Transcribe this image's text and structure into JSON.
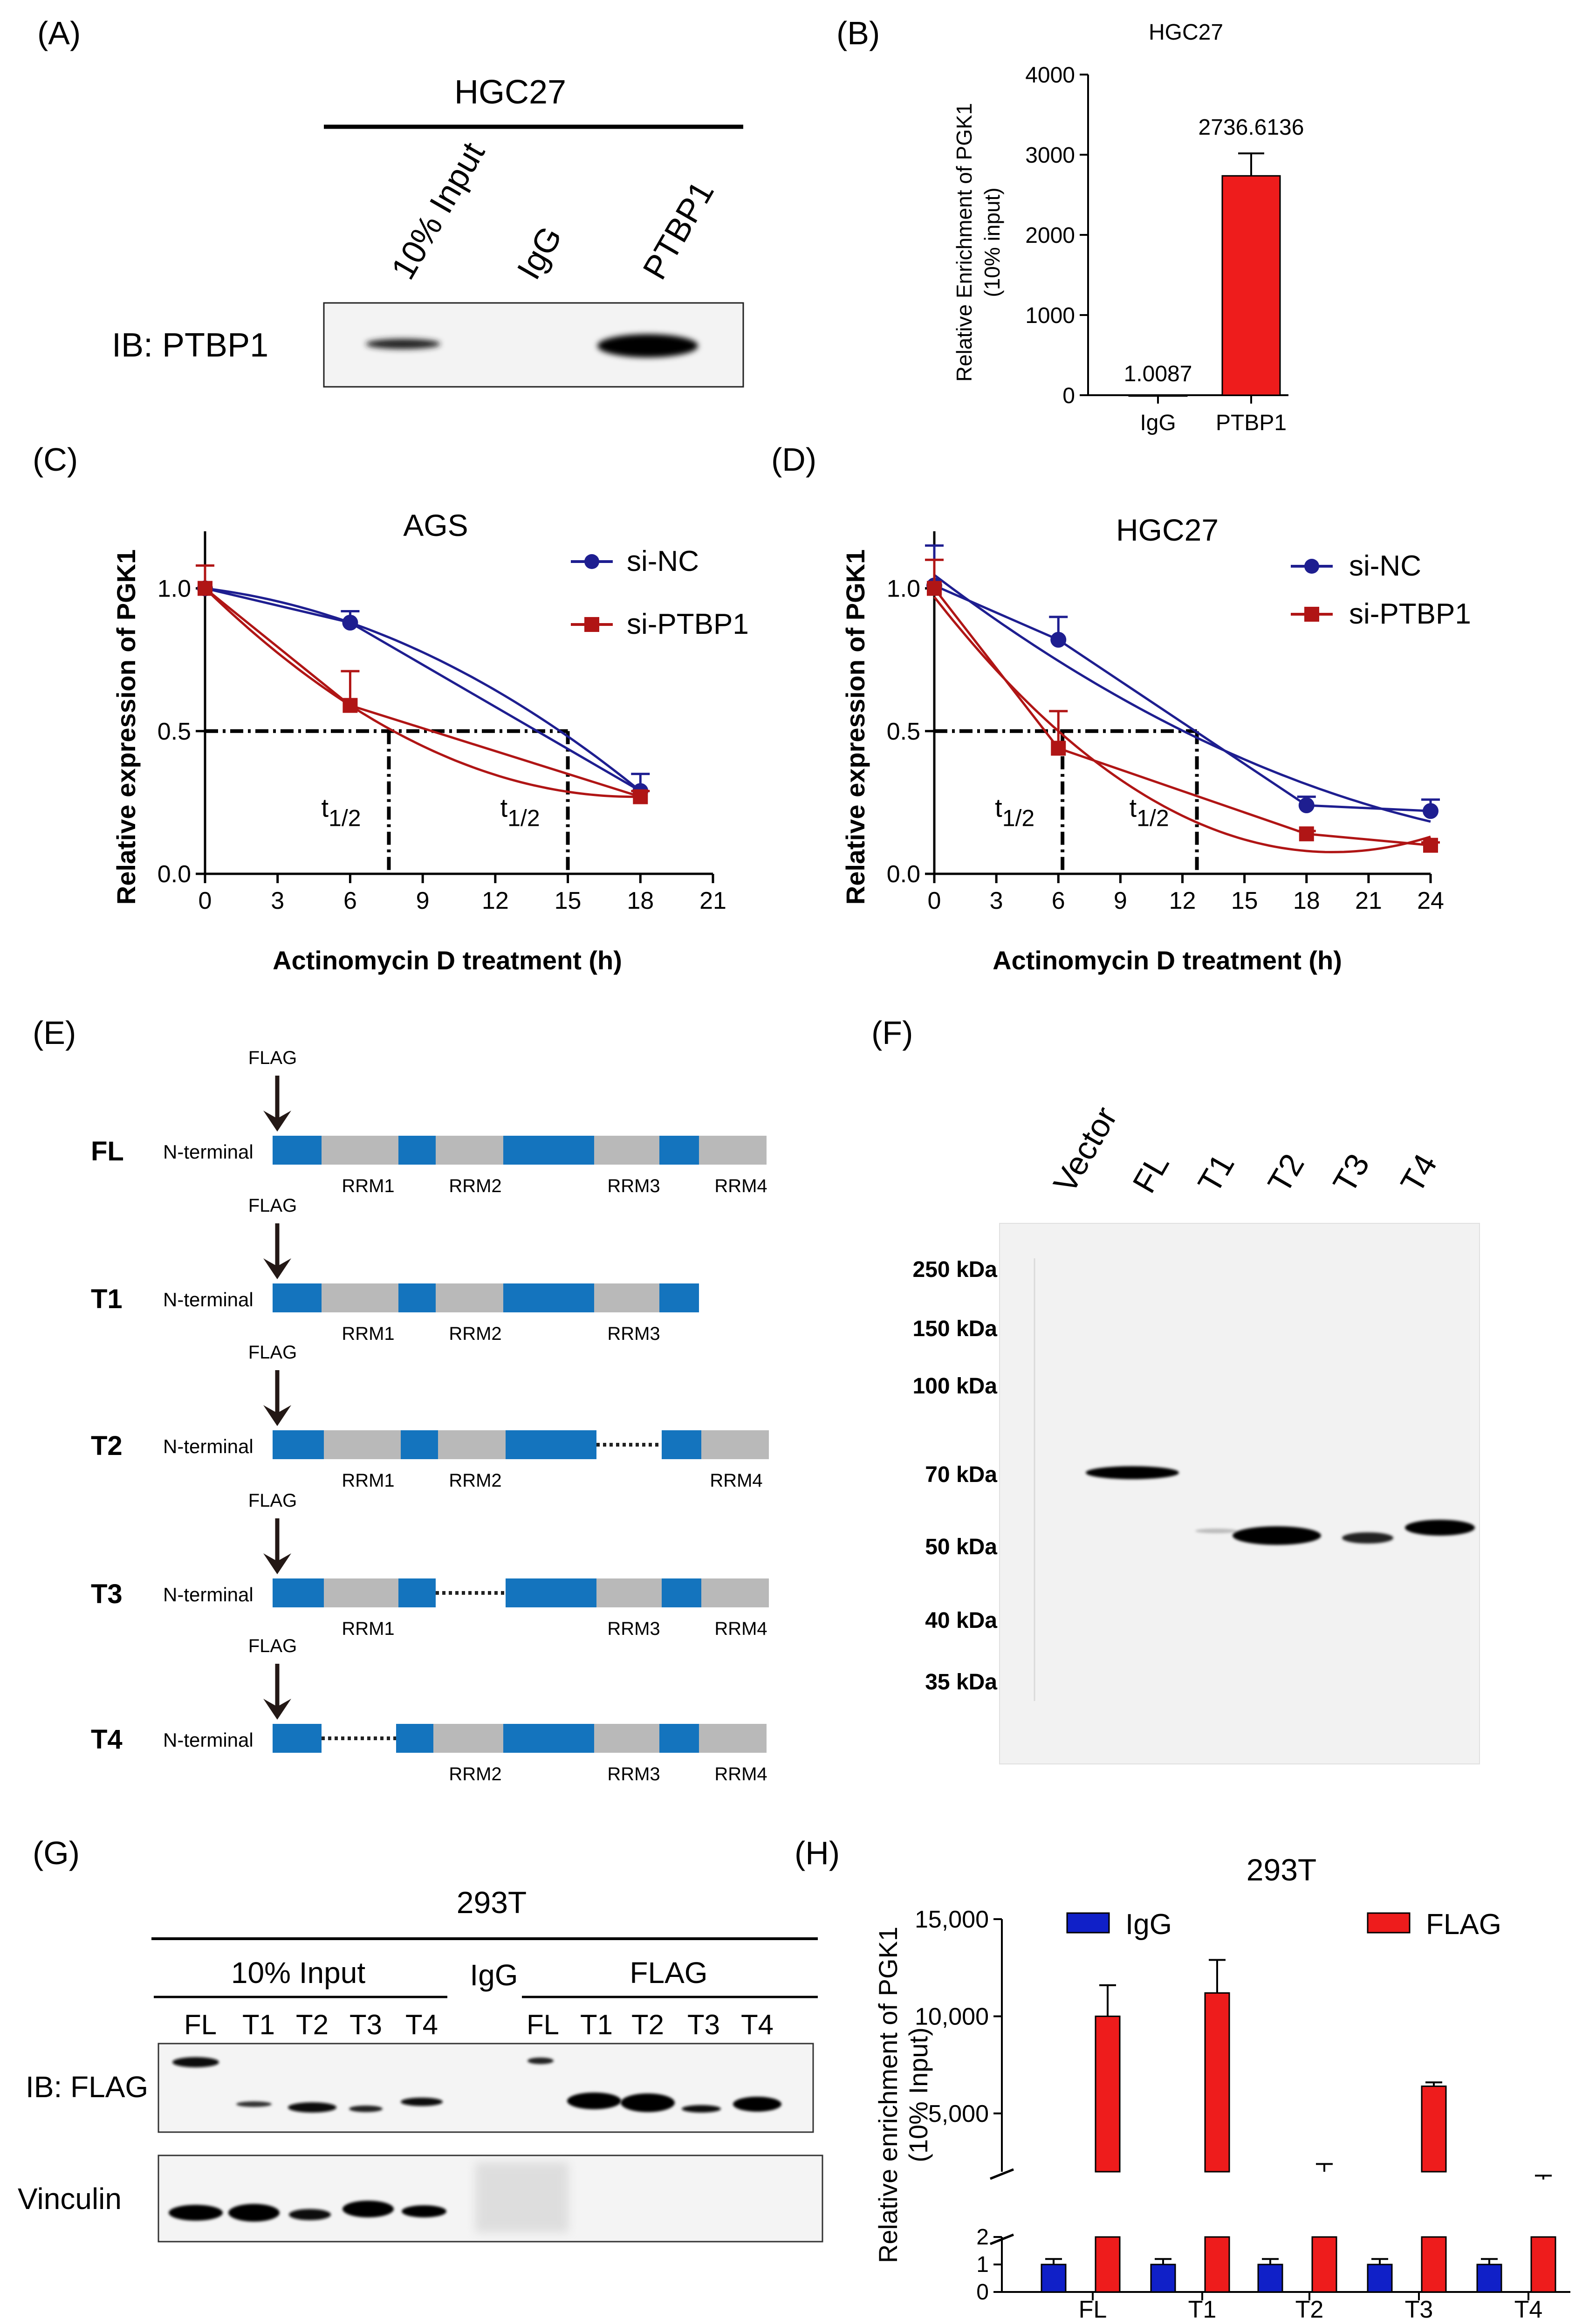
{
  "figure": {
    "panels": {
      "A": "(A)",
      "B": "(B)",
      "C": "(C)",
      "D": "(D)",
      "E": "(E)",
      "F": "(F)",
      "G": "(G)",
      "H": "(H)"
    }
  },
  "panel_a": {
    "cell_line": "HGC27",
    "lanes": [
      "10% Input",
      "IgG",
      "PTBP1"
    ],
    "blot_label": "IB: PTBP1"
  },
  "colors": {
    "red": "#ee1c1c",
    "darkred": "#b01515",
    "navy": "#1e1e90",
    "blue": "#1020c8",
    "exon": "#1474be",
    "grey": "#b9b9b9"
  },
  "chart_data": [
    {
      "id": "B",
      "type": "bar",
      "title": "HGC27",
      "ylabel": "Relative Enrichment of PGK1 (10% input)",
      "ylabel_line1": "Relative Enrichment of PGK1",
      "ylabel_line2": "(10% input)",
      "categories": [
        "IgG",
        "PTBP1"
      ],
      "values": [
        1.0087,
        2736.6136
      ],
      "errors": [
        0,
        280
      ],
      "value_labels": [
        "1.0087",
        "2736.6136"
      ],
      "ylim": [
        0,
        4000
      ],
      "yticks": [
        "0",
        "1000",
        "2000",
        "3000",
        "4000"
      ]
    },
    {
      "id": "C",
      "type": "line",
      "title": "AGS",
      "xlabel": "Actinomycin D treatment (h)",
      "ylabel": "Relative expression of PGK1",
      "xlim": [
        0,
        21
      ],
      "ylim": [
        0,
        1.2
      ],
      "xticks": [
        "0",
        "3",
        "6",
        "9",
        "12",
        "15",
        "18",
        "21"
      ],
      "yticks": [
        "0.0",
        "0.5",
        "1.0"
      ],
      "series": [
        {
          "name": "si-NC",
          "x": [
            0,
            6,
            18
          ],
          "y": [
            1.0,
            0.88,
            0.29
          ],
          "err": [
            0,
            0.04,
            0.06
          ]
        },
        {
          "name": "si-PTBP1",
          "x": [
            0,
            6,
            18
          ],
          "y": [
            1.0,
            0.59,
            0.27
          ],
          "err": [
            0.08,
            0.12,
            0.02
          ]
        }
      ],
      "half_life_label": "t1/2",
      "half_life": [
        7.6,
        15
      ]
    },
    {
      "id": "D",
      "type": "line",
      "title": "HGC27",
      "xlabel": "Actinomycin D treatment (h)",
      "ylabel": "Relative expression of PGK1",
      "xlim": [
        0,
        24
      ],
      "ylim": [
        0,
        1.2
      ],
      "xticks": [
        "0",
        "3",
        "6",
        "9",
        "12",
        "15",
        "18",
        "21",
        "24"
      ],
      "yticks": [
        "0.0",
        "0.5",
        "1.0"
      ],
      "series": [
        {
          "name": "si-NC",
          "x": [
            0,
            6,
            18,
            24
          ],
          "y": [
            1.01,
            0.82,
            0.24,
            0.22
          ],
          "err": [
            0.14,
            0.08,
            0.03,
            0.04
          ]
        },
        {
          "name": "si-PTBP1",
          "x": [
            0,
            6,
            18,
            24
          ],
          "y": [
            1.0,
            0.44,
            0.14,
            0.1
          ],
          "err": [
            0.1,
            0.13,
            0.01,
            0.01
          ]
        }
      ],
      "half_life_label": "t1/2",
      "half_life": [
        6.2,
        12.7
      ]
    },
    {
      "id": "H",
      "type": "bar",
      "title": "293T",
      "ylabel": "Relative enrichment of PGK1 (10% Input)",
      "ylabel_line1": "Relative enrichment of PGK1",
      "ylabel_line2": "(10% Input)",
      "categories": [
        "FL",
        "T1",
        "T2",
        "T3",
        "T4"
      ],
      "series": [
        {
          "name": "IgG",
          "values": [
            1,
            1,
            1,
            1,
            1
          ],
          "err": [
            0.2,
            0.2,
            0.2,
            0.2,
            0.2
          ]
        },
        {
          "name": "FLAG",
          "values": [
            10000,
            11200,
            2000,
            6400,
            1600
          ],
          "err": [
            1600,
            1700,
            400,
            200,
            200
          ]
        }
      ],
      "yticks_upper": [
        "5,000",
        "10,000",
        "15,000"
      ],
      "yticks_lower": [
        "0",
        "1",
        "2"
      ],
      "axis_break": [
        2,
        2000
      ]
    }
  ],
  "panel_e": {
    "flag": "FLAG",
    "n_terminal": "N-terminal",
    "constructs": [
      {
        "name": "FL",
        "labels": [
          "RRM1",
          "RRM2",
          "RRM3",
          "RRM4"
        ]
      },
      {
        "name": "T1",
        "labels": [
          "RRM1",
          "RRM2",
          "RRM3"
        ]
      },
      {
        "name": "T2",
        "labels": [
          "RRM1",
          "RRM2",
          "RRM4"
        ]
      },
      {
        "name": "T3",
        "labels": [
          "RRM1",
          "RRM3",
          "RRM4"
        ]
      },
      {
        "name": "T4",
        "labels": [
          "RRM2",
          "RRM3",
          "RRM4"
        ]
      }
    ]
  },
  "panel_f": {
    "lanes": [
      "Vector",
      "FL",
      "T1",
      "T2",
      "T3",
      "T4"
    ],
    "markers": [
      "250 kDa",
      "150 kDa",
      "100 kDa",
      "70 kDa",
      "50 kDa",
      "40 kDa",
      "35 kDa"
    ]
  },
  "panel_g": {
    "cell_line": "293T",
    "input_label": "10% Input",
    "igg_label": "IgG",
    "flag_label": "FLAG",
    "lanes": [
      "FL",
      "T1",
      "T2",
      "T3",
      "T4"
    ],
    "lanes_flag": [
      "FL",
      "T1",
      "T2",
      "T3",
      "T4"
    ],
    "blot1_label": "IB: FLAG",
    "blot2_label": "Vinculin"
  }
}
